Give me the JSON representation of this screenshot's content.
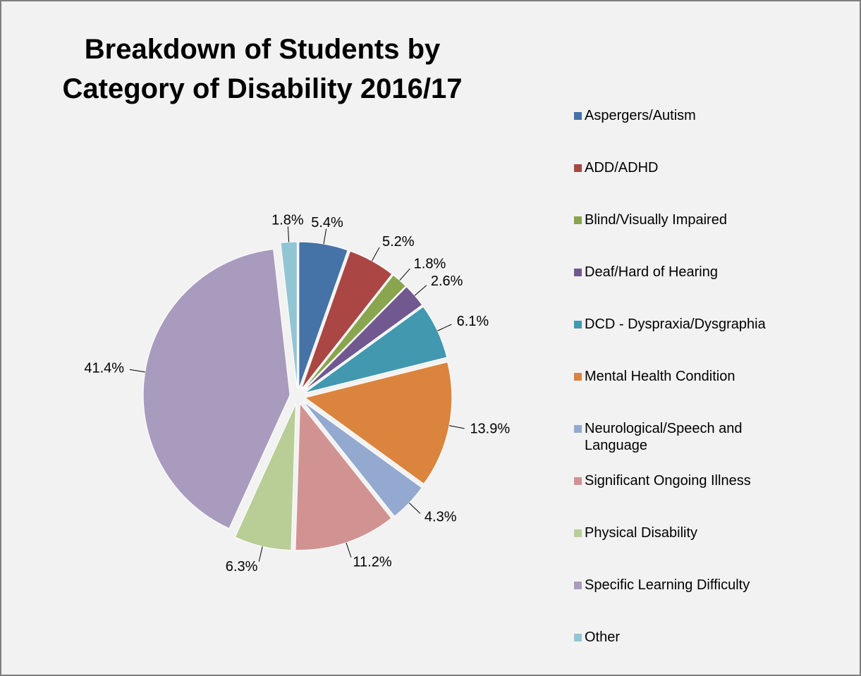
{
  "chart_data": {
    "type": "pie",
    "title": "Breakdown of Students by Category of Disability 2016/17",
    "categories": [
      "Aspergers/Autism",
      "ADD/ADHD",
      "Blind/Visually Impaired",
      "Deaf/Hard of Hearing",
      "DCD - Dyspraxia/Dysgraphia",
      "Mental Health Condition",
      "Neurological/Speech and Language",
      "Significant Ongoing Illness",
      "Physical Disability",
      "Specific Learning Difficulty",
      "Other"
    ],
    "values": [
      5.4,
      5.2,
      1.8,
      2.6,
      6.1,
      13.9,
      4.3,
      11.2,
      6.3,
      41.4,
      1.8
    ],
    "value_labels": [
      "5.4%",
      "5.2%",
      "1.8%",
      "2.6%",
      "6.1%",
      "13.9%",
      "4.3%",
      "11.2%",
      "6.3%",
      "41.4%",
      "1.8%"
    ],
    "colors": [
      "#4572a7",
      "#aa4643",
      "#89a54e",
      "#71588f",
      "#4198af",
      "#db843d",
      "#93a9cf",
      "#d19392",
      "#b9cd96",
      "#a99bbd",
      "#92c5d4"
    ],
    "legend": "right"
  }
}
